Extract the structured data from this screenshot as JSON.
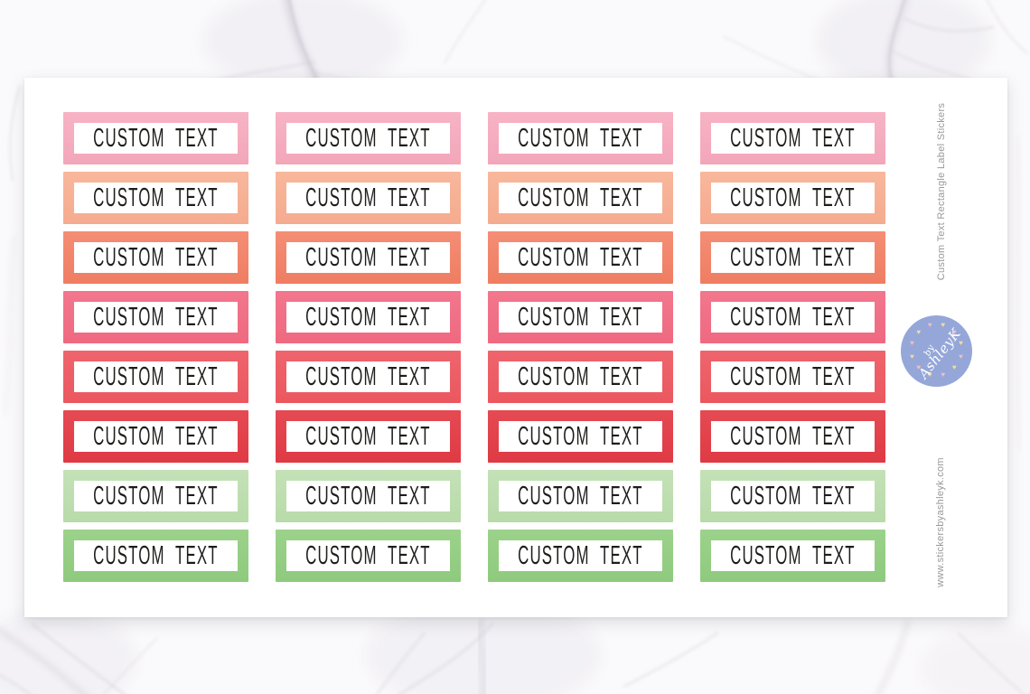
{
  "sheet": {
    "sticker_text": "CUSTOM TEXT",
    "columns": 4,
    "rows": [
      {
        "color_name": "pink",
        "border_color": "#F3A6BA",
        "border_color_light": "#F7B3C5"
      },
      {
        "color_name": "peach",
        "border_color": "#F5AB8F",
        "border_color_light": "#F8B79C"
      },
      {
        "color_name": "coral",
        "border_color": "#EF7D62",
        "border_color_light": "#F48E75"
      },
      {
        "color_name": "watermelon",
        "border_color": "#EF6980",
        "border_color_light": "#F2778D"
      },
      {
        "color_name": "soft-red",
        "border_color": "#EB575F",
        "border_color_light": "#EF656D"
      },
      {
        "color_name": "red",
        "border_color": "#DF3A44",
        "border_color_light": "#E54A53"
      },
      {
        "color_name": "light-green",
        "border_color": "#B8DBA9",
        "border_color_light": "#C4E1B7"
      },
      {
        "color_name": "green",
        "border_color": "#8ECA7D",
        "border_color_light": "#9CD28B"
      }
    ]
  },
  "sidebar": {
    "product_title": "Custom Text Rectangle Label Stickers",
    "website": "www.stickersbyashleyk.com"
  },
  "logo": {
    "line1": "by",
    "line2": "AshleyK",
    "circle_color": "#95A7D8",
    "text_color": "#FFFFFF",
    "heart_colors": [
      "#F5BCC8",
      "#F4DC9F"
    ]
  },
  "colors": {
    "sticker_text": "#1D1D1B",
    "sheet_bg": "#FFFFFF",
    "side_text": "#9A989B",
    "marble_base": "#FAF9FB",
    "marble_vein": "#C9C6D0"
  }
}
